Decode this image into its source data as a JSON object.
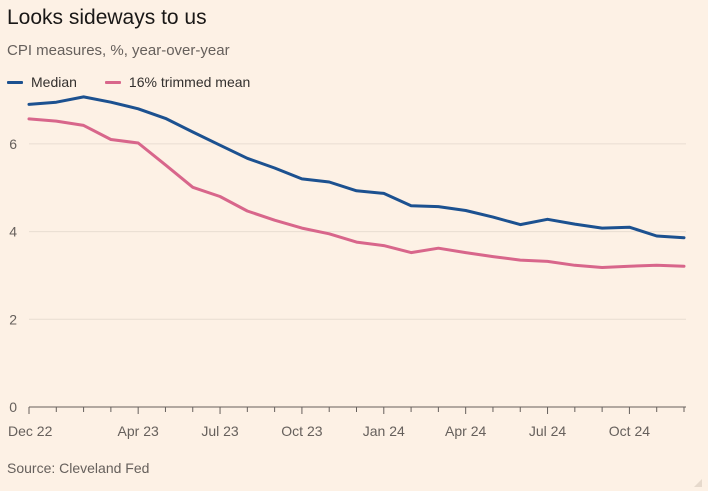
{
  "title": "Looks sideways to us",
  "subtitle": "CPI measures, %, year-over-year",
  "source": "Source: Cleveland Fed",
  "colors": {
    "median": "#1c5190",
    "trimmed": "#d8668b",
    "grid": "#e8ddd2",
    "axis": "#66605c"
  },
  "chart_data": {
    "type": "line",
    "title": "Looks sideways to us",
    "subtitle": "CPI measures, %, year-over-year",
    "legend_position": "top-left",
    "grid": true,
    "x": [
      "Dec 22",
      "Jan 23",
      "Feb 23",
      "Mar 23",
      "Apr 23",
      "May 23",
      "Jun 23",
      "Jul 23",
      "Aug 23",
      "Sep 23",
      "Oct 23",
      "Nov 23",
      "Dec 23",
      "Jan 24",
      "Feb 24",
      "Mar 24",
      "Apr 24",
      "May 24",
      "Jun 24",
      "Jul 24",
      "Aug 24",
      "Sep 24",
      "Oct 24",
      "Nov 24",
      "Dec 24"
    ],
    "xtick_labels": [
      "Dec 22",
      "Apr 23",
      "Jul 23",
      "Oct 23",
      "Jan 24",
      "Apr 24",
      "Jul 24",
      "Oct 24"
    ],
    "xtick_indices": [
      0,
      4,
      7,
      10,
      13,
      16,
      19,
      22
    ],
    "ylim": [
      0,
      7
    ],
    "yticks": [
      0,
      2,
      4,
      6
    ],
    "series": [
      {
        "name": "Median",
        "values": [
          6.9,
          6.95,
          7.07,
          6.95,
          6.8,
          6.58,
          6.27,
          5.97,
          5.67,
          5.45,
          5.2,
          5.13,
          4.93,
          4.87,
          4.59,
          4.57,
          4.48,
          4.33,
          4.16,
          4.28,
          4.17,
          4.08,
          4.1,
          3.9,
          3.86
        ]
      },
      {
        "name": "16% trimmed mean",
        "values": [
          6.57,
          6.52,
          6.42,
          6.1,
          6.02,
          5.52,
          5.01,
          4.8,
          4.47,
          4.26,
          4.08,
          3.95,
          3.76,
          3.68,
          3.52,
          3.62,
          3.52,
          3.43,
          3.35,
          3.32,
          3.23,
          3.18,
          3.21,
          3.23,
          3.21
        ]
      }
    ]
  }
}
